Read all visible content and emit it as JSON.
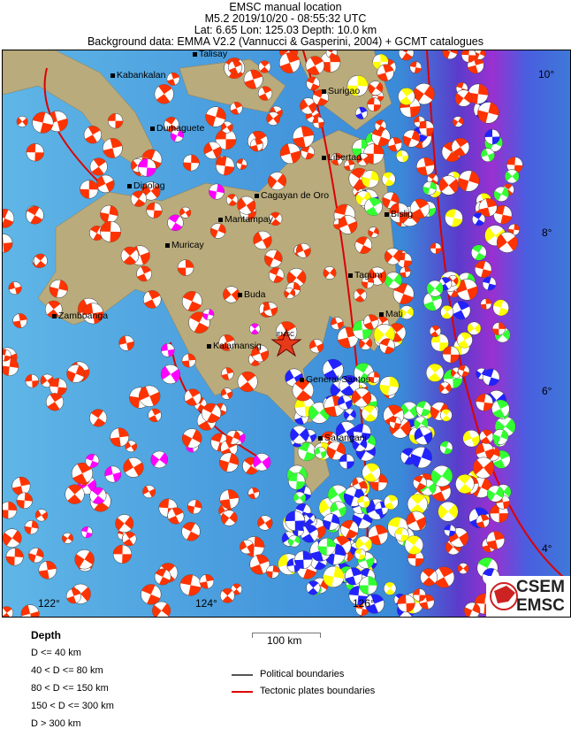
{
  "header": {
    "line1": "EMSC manual location",
    "line2": "M5.2  2019/10/20 - 08:55:32 UTC",
    "line3": "Lat:  6.65    Lon: 125.03     Depth:  10.0 km",
    "line4": "Background data: EMMA V2.2 (Vannucci & Gasperini, 2004) + GCMT catalogues"
  },
  "map": {
    "cities": [
      "Talisay",
      "Kabankalan",
      "Surigao",
      "Dumaguete",
      "Libertad",
      "Dipolog",
      "Cagayan de Oro",
      "Bislig",
      "Mantampay",
      "Muricay",
      "Tagum",
      "Buda",
      "Zamboanga",
      "Mati",
      "Kalamansig",
      "General Santos",
      "Sarangani"
    ],
    "lat_labels": [
      "10°",
      "8°",
      "6°",
      "4°"
    ],
    "lon_labels": [
      "122°",
      "124°",
      "126°"
    ],
    "epicenter_label": "EMSC",
    "epicenter_icon": "star-icon",
    "logo": {
      "line1": "CSEM",
      "line2": "EMSC"
    }
  },
  "legend": {
    "depth_title": "Depth",
    "depth_classes": [
      {
        "label": "D <= 40 km",
        "color": "#ff3300"
      },
      {
        "label": "40 < D <= 80 km",
        "color": "#ffff00"
      },
      {
        "label": "80 < D <= 150 km",
        "color": "#33ff33"
      },
      {
        "label": "150 < D <= 300 km",
        "color": "#2222ff"
      },
      {
        "label": "D > 300 km",
        "color": "#ff00ff"
      }
    ],
    "scale": "100 km",
    "lines": [
      {
        "label": "Political boundaries",
        "color": "#555555"
      },
      {
        "label": "Tectonic plates boundaries",
        "color": "#dd0000"
      }
    ]
  }
}
